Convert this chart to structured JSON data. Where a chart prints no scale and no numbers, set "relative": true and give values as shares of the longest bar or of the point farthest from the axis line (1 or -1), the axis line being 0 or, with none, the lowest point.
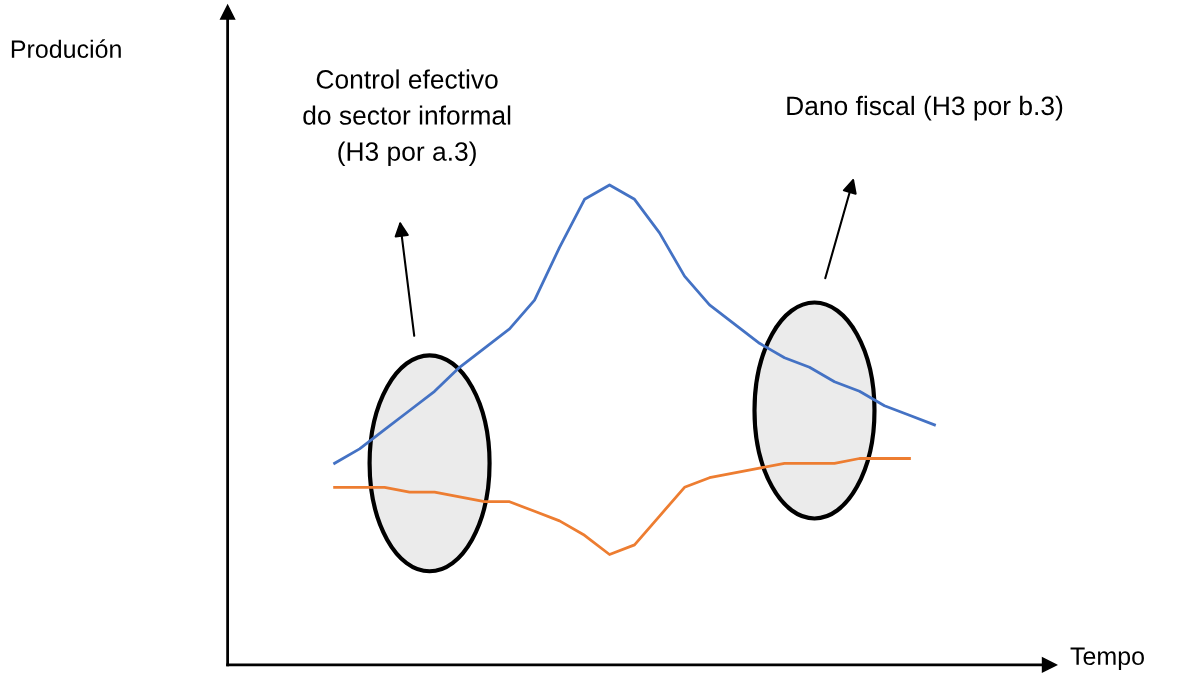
{
  "chart_data": {
    "type": "line",
    "relative": true,
    "xlabel": "Tempo",
    "categories": [
      null,
      null,
      null,
      null,
      null,
      null,
      null,
      null,
      null,
      null,
      null,
      null,
      null,
      null,
      null,
      null,
      null,
      null,
      null,
      null,
      null,
      null,
      null,
      null,
      null
    ],
    "series": [
      {
        "color": "#4472c4",
        "values": [
          0.42,
          0.45,
          0.49,
          0.53,
          0.57,
          0.62,
          0.66,
          0.7,
          0.76,
          0.87,
          0.97,
          1,
          0.97,
          0.9,
          0.81,
          0.75,
          0.71,
          0.67,
          0.64,
          0.62,
          0.59,
          0.57,
          0.54,
          0.52,
          0.5
        ]
      },
      {
        "color": "#ed7d31",
        "values": [
          0.37,
          0.37,
          0.37,
          0.36,
          0.36,
          0.35,
          0.34,
          0.34,
          0.32,
          0.3,
          0.27,
          0.23,
          0.25,
          0.31,
          0.37,
          0.39,
          0.4,
          0.41,
          0.42,
          0.42,
          0.42,
          0.43,
          0.43,
          0.43,
          null
        ]
      }
    ],
    "annotations": [
      "Control efectivo\ndo sector informal\n(H3 por a.3)",
      "Dano fiscal (H3 por b.3)",
      "Produción"
    ],
    "legend": false
  }
}
